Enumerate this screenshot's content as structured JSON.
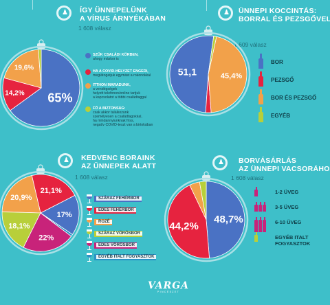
{
  "panels": [
    {
      "title_lines": [
        "ÍGY ÜNNEPELÜNK",
        "A VÍRUS ÁRNYÉKÁBAN"
      ],
      "count": "1 608 válasz"
    },
    {
      "title_lines": [
        "ÜNNEPI KOCCINTÁS:",
        "BORRAL ÉS PEZSGŐVEL"
      ],
      "count": "1 609 válasz"
    },
    {
      "title_lines": [
        "KEDVENC BORAINK",
        "AZ ÜNNEPEK ALATT"
      ],
      "count": "1 608 válasz"
    },
    {
      "title_lines": [
        "BORVÁSÁRLÁS",
        "AZ ÜNNEPI VACSORÁHOZ"
      ],
      "count": "1 608 válasz"
    }
  ],
  "legend1": [
    {
      "head": "SZŰK CSALÁDI KÖRBEN,",
      "lines": [
        "ahogy máskor is"
      ],
      "color": "#4a72c4"
    },
    {
      "head": "HA A COVID-HELYZET ENGEDI,",
      "lines": [
        "meglátogatjuk egymást a rokonokkal"
      ],
      "color": "#e6233f"
    },
    {
      "head": "ITTHON MARADUNK,",
      "lines": [
        "a vendégségek",
        "helyett telefonon/online tartjuk",
        "a kapcsolatot a többi családtaggal"
      ],
      "color": "#f2a14a"
    },
    {
      "head": "FŐ A BIZTONSÁG:",
      "lines": [
        "csak akkor találkozunk",
        "személyesen a családtagokkal,",
        "ha mindannyiunknak friss,",
        "negatív COVID-teszt van a birtokában"
      ],
      "color": "#b8cf3a"
    }
  ],
  "legend2": [
    {
      "label": "BOR",
      "color": "#4a72c4"
    },
    {
      "label": "PEZSGŐ",
      "color": "#e6233f"
    },
    {
      "label": "BOR ÉS PEZSGŐ",
      "color": "#f2a14a"
    },
    {
      "label": "EGYÉB",
      "color": "#b8cf3a"
    }
  ],
  "legend3": [
    {
      "label": "SZÁRAZ FEHÉRBOR",
      "color": "#4a72c4"
    },
    {
      "label": "ÉDES FEHÉRBOR",
      "color": "#e6233f"
    },
    {
      "label": "ROZÉ",
      "color": "#f2a14a"
    },
    {
      "label": "SZÁRAZ VÖRÖSBOR",
      "color": "#b8cf3a"
    },
    {
      "label": "ÉDES VÖRÖSBOR",
      "color": "#c8237a"
    },
    {
      "label": "EGYÉB ITALT FOGYASZTOK",
      "color": "#2b93c5"
    }
  ],
  "legend4": [
    {
      "lines": [
        "1-2 ÜVEG"
      ],
      "bottles": 1
    },
    {
      "lines": [
        "3-5 ÜVEG"
      ],
      "bottles": 3
    },
    {
      "lines": [
        "6-10 ÜVEG"
      ],
      "bottles": 6
    },
    {
      "lines": [
        "EGYÉB ITALT",
        "FOGYASZTOK"
      ],
      "bottles": 1
    }
  ],
  "brand": {
    "name": "VARGA",
    "sub": "PINCÉSZET"
  },
  "chart_data": [
    {
      "type": "pie",
      "values": [
        65,
        14.2,
        19.6,
        1.2
      ],
      "labels": [
        "65%",
        "14,2%",
        "19,6%",
        ""
      ],
      "colors": [
        "#4a72c4",
        "#e6233f",
        "#f2a14a",
        "#b8cf3a"
      ]
    },
    {
      "type": "pie",
      "values": [
        51.1,
        2.3,
        45.4,
        1.2
      ],
      "labels": [
        "51,1",
        "",
        "45,4%",
        ""
      ],
      "colors": [
        "#4a72c4",
        "#e6233f",
        "#f2a14a",
        "#b8cf3a"
      ]
    },
    {
      "type": "pie",
      "values": [
        17,
        21.1,
        20.9,
        18.1,
        22,
        0.9
      ],
      "labels": [
        "17%",
        "21,1%",
        "20,9%",
        "18,1%",
        "22%",
        ""
      ],
      "colors": [
        "#4a72c4",
        "#e6233f",
        "#f2a14a",
        "#b8cf3a",
        "#c8237a",
        "#2b93c5"
      ]
    },
    {
      "type": "pie",
      "values": [
        48.7,
        44.2,
        4.3,
        2.8
      ],
      "labels": [
        "48,7%",
        "44,2%",
        "",
        ""
      ],
      "colors": [
        "#4a72c4",
        "#e6233f",
        "#f2a14a",
        "#b8cf3a"
      ]
    }
  ]
}
